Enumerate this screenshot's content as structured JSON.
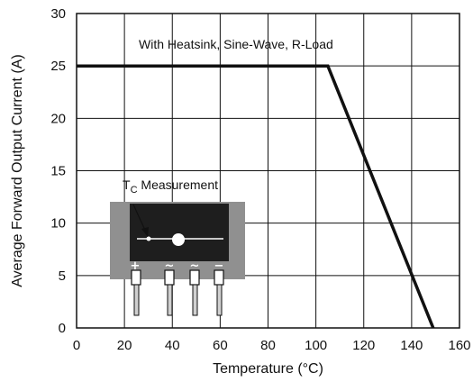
{
  "chart_data": {
    "type": "line",
    "title": "",
    "xlabel": "Temperature (°C)",
    "ylabel": "Average Forward Output Current (A)",
    "xlim": [
      0,
      160
    ],
    "ylim": [
      0,
      30
    ],
    "x_ticks": [
      0,
      20,
      40,
      60,
      80,
      100,
      120,
      140,
      160
    ],
    "y_ticks": [
      0,
      5,
      10,
      15,
      20,
      25,
      30
    ],
    "grid": true,
    "series": [
      {
        "name": "",
        "x": [
          0,
          105,
          149
        ],
        "y": [
          25,
          25,
          0
        ]
      }
    ],
    "annotations": {
      "curve_label": "With Heatsink, Sine-Wave, R-Load",
      "inset_label_prefix": "T",
      "inset_label_subscript": "C",
      "inset_label_suffix": " Measurement",
      "inset_pin_symbols": [
        "+",
        "~",
        "~",
        "−"
      ]
    }
  }
}
